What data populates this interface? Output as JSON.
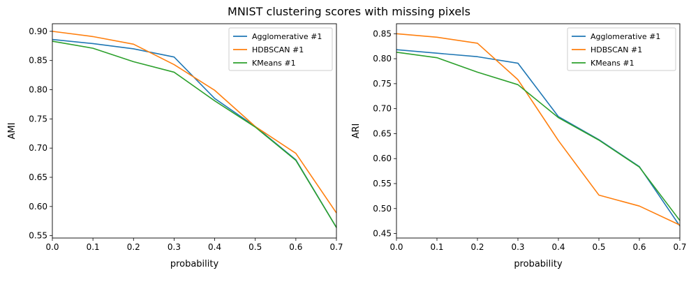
{
  "figure": {
    "title": "MNIST clustering scores with missing pixels"
  },
  "colors": {
    "Agglomerative #1": "#1f77b4",
    "HDBSCAN #1": "#ff7f0e",
    "KMeans #1": "#2ca02c"
  },
  "chart_data": [
    {
      "type": "line",
      "xlabel": "probability",
      "ylabel": "AMI",
      "xlim": [
        0.0,
        0.7
      ],
      "ylim": [
        0.546,
        0.913
      ],
      "xticks": [
        0.0,
        0.1,
        0.2,
        0.3,
        0.4,
        0.5,
        0.6,
        0.7
      ],
      "yticks": [
        0.55,
        0.6,
        0.65,
        0.7,
        0.75,
        0.8,
        0.85,
        0.9
      ],
      "tick_decimals": 2,
      "legend_position": "top-right",
      "x": [
        0.0,
        0.1,
        0.2,
        0.3,
        0.4,
        0.5,
        0.6,
        0.7
      ],
      "series": [
        {
          "name": "Agglomerative #1",
          "values": [
            0.886,
            0.879,
            0.87,
            0.856,
            0.785,
            0.737,
            0.68,
            0.564
          ]
        },
        {
          "name": "HDBSCAN #1",
          "values": [
            0.9,
            0.891,
            0.878,
            0.843,
            0.799,
            0.737,
            0.691,
            0.589
          ]
        },
        {
          "name": "KMeans #1",
          "values": [
            0.883,
            0.871,
            0.848,
            0.83,
            0.781,
            0.736,
            0.679,
            0.564
          ]
        }
      ]
    },
    {
      "type": "line",
      "xlabel": "probability",
      "ylabel": "ARI",
      "xlim": [
        0.0,
        0.7
      ],
      "ylim": [
        0.441,
        0.87
      ],
      "xticks": [
        0.0,
        0.1,
        0.2,
        0.3,
        0.4,
        0.5,
        0.6,
        0.7
      ],
      "yticks": [
        0.45,
        0.5,
        0.55,
        0.6,
        0.65,
        0.7,
        0.75,
        0.8,
        0.85
      ],
      "tick_decimals": 2,
      "legend_position": "top-right",
      "x": [
        0.0,
        0.1,
        0.2,
        0.3,
        0.4,
        0.5,
        0.6,
        0.7
      ],
      "series": [
        {
          "name": "Agglomerative #1",
          "values": [
            0.818,
            0.811,
            0.804,
            0.791,
            0.684,
            0.638,
            0.584,
            0.465
          ]
        },
        {
          "name": "HDBSCAN #1",
          "values": [
            0.85,
            0.843,
            0.831,
            0.758,
            0.636,
            0.527,
            0.505,
            0.467
          ]
        },
        {
          "name": "KMeans #1",
          "values": [
            0.813,
            0.802,
            0.773,
            0.748,
            0.682,
            0.637,
            0.583,
            0.476
          ]
        }
      ]
    }
  ]
}
